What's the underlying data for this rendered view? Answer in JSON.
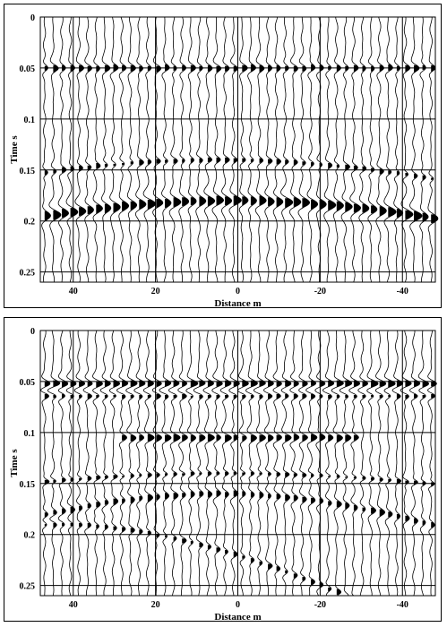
{
  "chart_data": [
    {
      "type": "seismic-wiggle",
      "xlabel": "Distance m",
      "ylabel": "Time s",
      "x_ticks": [
        40,
        20,
        0,
        -20,
        -40
      ],
      "y_ticks": [
        "0",
        "0.05",
        "0.1",
        "0.15",
        "0.2",
        "0.25"
      ],
      "y_tick_values": [
        0,
        0.05,
        0.1,
        0.15,
        0.2,
        0.25
      ],
      "xlim": [
        48,
        -48
      ],
      "ylim": [
        0,
        0.26
      ],
      "grid": true,
      "trace_count": 46,
      "reflectors": [
        {
          "kind": "flat",
          "time": 0.05,
          "apex_x": 0,
          "amplitude": 0.6,
          "width": 0.006,
          "extent": [
            48,
            -48
          ]
        },
        {
          "kind": "hyperbola",
          "time": 0.14,
          "apex_x": 5,
          "velocity": 700,
          "amplitude": 0.5,
          "width": 0.005
        },
        {
          "kind": "hyperbola",
          "time": 0.18,
          "apex_x": 2,
          "velocity": 600,
          "amplitude": 1.0,
          "width": 0.008
        }
      ],
      "colors": {
        "ink": "#000000",
        "background": "#ffffff"
      }
    },
    {
      "type": "seismic-wiggle",
      "xlabel": "Distance m",
      "ylabel": "Time s",
      "x_ticks": [
        40,
        20,
        0,
        -20,
        -40
      ],
      "y_ticks": [
        "0",
        "0.05",
        "0.1",
        "0.15",
        "0.2",
        "0.25"
      ],
      "y_tick_values": [
        0,
        0.05,
        0.1,
        0.15,
        0.2,
        0.25
      ],
      "xlim": [
        48,
        -48
      ],
      "ylim": [
        0,
        0.26
      ],
      "grid": true,
      "trace_count": 46,
      "reflectors": [
        {
          "kind": "flat",
          "time": 0.052,
          "apex_x": 0,
          "amplitude": 0.9,
          "width": 0.006,
          "extent": [
            48,
            -48
          ]
        },
        {
          "kind": "flat",
          "time": 0.064,
          "apex_x": 0,
          "amplitude": 0.6,
          "width": 0.005,
          "extent": [
            48,
            -48
          ]
        },
        {
          "kind": "flat",
          "time": 0.105,
          "apex_x": 0,
          "amplitude": 0.8,
          "width": 0.006,
          "extent": [
            30,
            -30
          ]
        },
        {
          "kind": "hyperbola",
          "time": 0.14,
          "apex_x": 3,
          "velocity": 900,
          "amplitude": 0.5,
          "width": 0.004
        },
        {
          "kind": "hyperbola",
          "time": 0.16,
          "apex_x": 5,
          "velocity": 500,
          "amplitude": 0.6,
          "width": 0.006
        },
        {
          "kind": "hyperbola",
          "time": 0.19,
          "apex_x": 45,
          "velocity": 400,
          "amplitude": 0.5,
          "width": 0.005
        }
      ],
      "colors": {
        "ink": "#000000",
        "background": "#ffffff"
      }
    }
  ]
}
